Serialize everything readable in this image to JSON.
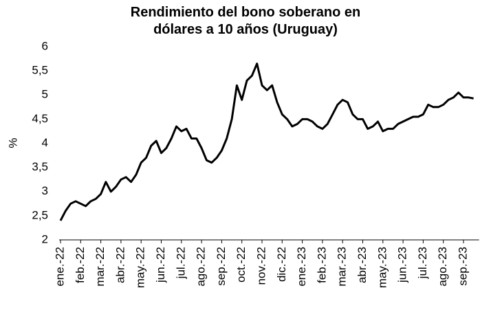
{
  "chart_data": {
    "type": "line",
    "title": "Rendimiento del bono soberano en dólares a 10 años (Uruguay)",
    "y_label": "%",
    "categories": [
      "ene.-22",
      null,
      null,
      null,
      "feb.-22",
      null,
      null,
      null,
      "mar.-22",
      null,
      null,
      null,
      "abr.-22",
      null,
      null,
      null,
      "may.-22",
      null,
      null,
      null,
      "jun.-22",
      null,
      null,
      null,
      "jul.-22",
      null,
      null,
      null,
      "ago.-22",
      null,
      null,
      null,
      "sep.-22",
      null,
      null,
      null,
      "oct.-22",
      null,
      null,
      null,
      "nov.-22",
      null,
      null,
      null,
      "dic.-22",
      null,
      null,
      null,
      "ene.-23",
      null,
      null,
      null,
      "feb.-23",
      null,
      null,
      null,
      "mar.-23",
      null,
      null,
      null,
      "abr.-23",
      null,
      null,
      null,
      "may.-23",
      null,
      null,
      null,
      "jun.-23",
      null,
      null,
      null,
      "jul.-23",
      null,
      null,
      null,
      "ago.-23",
      null,
      null,
      null,
      "sep.-23",
      null,
      null
    ],
    "series": [
      {
        "name": "Rendimiento",
        "color": "#000000",
        "values": [
          2.4,
          2.6,
          2.75,
          2.8,
          2.75,
          2.7,
          2.8,
          2.85,
          2.95,
          3.2,
          3.0,
          3.1,
          3.25,
          3.3,
          3.2,
          3.35,
          3.6,
          3.7,
          3.95,
          4.05,
          3.8,
          3.9,
          4.1,
          4.35,
          4.25,
          4.3,
          4.1,
          4.1,
          3.9,
          3.65,
          3.6,
          3.7,
          3.85,
          4.1,
          4.5,
          5.2,
          4.9,
          5.3,
          5.4,
          5.65,
          5.2,
          5.1,
          5.2,
          4.85,
          4.6,
          4.5,
          4.35,
          4.4,
          4.5,
          4.5,
          4.45,
          4.35,
          4.3,
          4.4,
          4.6,
          4.8,
          4.9,
          4.85,
          4.6,
          4.5,
          4.5,
          4.3,
          4.35,
          4.45,
          4.25,
          4.3,
          4.3,
          4.4,
          4.45,
          4.5,
          4.55,
          4.55,
          4.6,
          4.8,
          4.75,
          4.75,
          4.8,
          4.9,
          4.95,
          5.05,
          4.95,
          4.95,
          4.93
        ]
      }
    ],
    "ylim": [
      2,
      6
    ],
    "yticks": [
      2,
      {
        "value": 2.5,
        "label": "2,5"
      },
      3,
      {
        "value": 3.5,
        "label": "3,5"
      },
      4,
      {
        "value": 4.5,
        "label": "4,5"
      },
      5,
      {
        "value": 5.5,
        "label": "5,5"
      },
      6
    ],
    "grid": false
  }
}
